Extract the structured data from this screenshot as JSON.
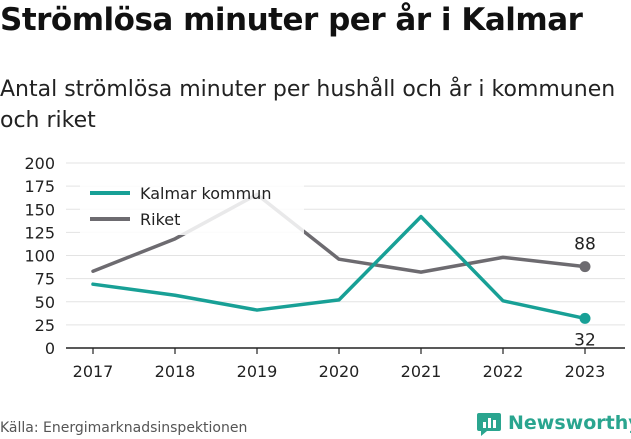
{
  "header": {
    "title": "Strömlösa minuter per år i Kalmar",
    "subtitle": "Antal strömlösa minuter per hushåll och år i kommunen och riket"
  },
  "footer": {
    "source": "Källa: Energimarknadsinspektionen",
    "brand": "Newsworthy",
    "brand_icon": "bar-chart-logo-icon"
  },
  "colors": {
    "kalmar": "#18a096",
    "riket": "#6d6b70",
    "brand": "#2aa58f"
  },
  "chart_data": {
    "type": "line",
    "title": "Strömlösa minuter per år i Kalmar",
    "subtitle": "Antal strömlösa minuter per hushåll och år i kommunen och riket",
    "x": [
      "2017",
      "2018",
      "2019",
      "2020",
      "2021",
      "2022",
      "2023"
    ],
    "yticks": [
      "0",
      "25",
      "50",
      "75",
      "100",
      "125",
      "150",
      "175",
      "200"
    ],
    "ylim": [
      0,
      200
    ],
    "grid": true,
    "legend": "top-left",
    "series": [
      {
        "name": "Kalmar kommun",
        "values": [
          69,
          57,
          41,
          52,
          142,
          51,
          32
        ],
        "end_label": "32"
      },
      {
        "name": "Riket",
        "values": [
          83,
          118,
          166,
          96,
          82,
          98,
          88
        ],
        "end_label": "88"
      }
    ]
  }
}
